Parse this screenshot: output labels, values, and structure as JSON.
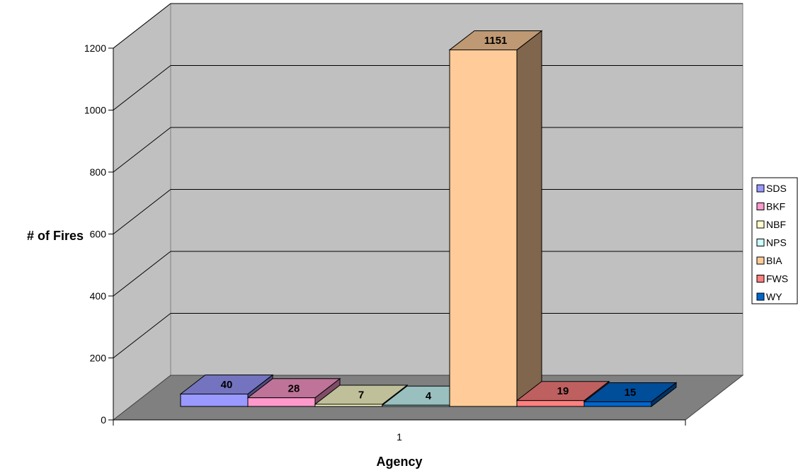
{
  "chart_data": {
    "type": "bar",
    "title": "",
    "xlabel": "Agency",
    "ylabel": "# of Fires",
    "categories": [
      "1"
    ],
    "ylim": [
      0,
      1200
    ],
    "yticks": [
      0,
      200,
      400,
      600,
      800,
      1000,
      1200
    ],
    "grid": true,
    "legend_position": "right",
    "series": [
      {
        "name": "SDS",
        "values": [
          40
        ],
        "color": "#9999ff"
      },
      {
        "name": "BKF",
        "values": [
          28
        ],
        "color": "#ff99cc"
      },
      {
        "name": "NBF",
        "values": [
          7
        ],
        "color": "#ffffcc"
      },
      {
        "name": "NPS",
        "values": [
          4
        ],
        "color": "#ccffff"
      },
      {
        "name": "BIA",
        "values": [
          1151
        ],
        "color": "#ffcc99"
      },
      {
        "name": "FWS",
        "values": [
          19
        ],
        "color": "#ff8080"
      },
      {
        "name": "WY",
        "values": [
          15
        ],
        "color": "#0066cc"
      }
    ]
  }
}
